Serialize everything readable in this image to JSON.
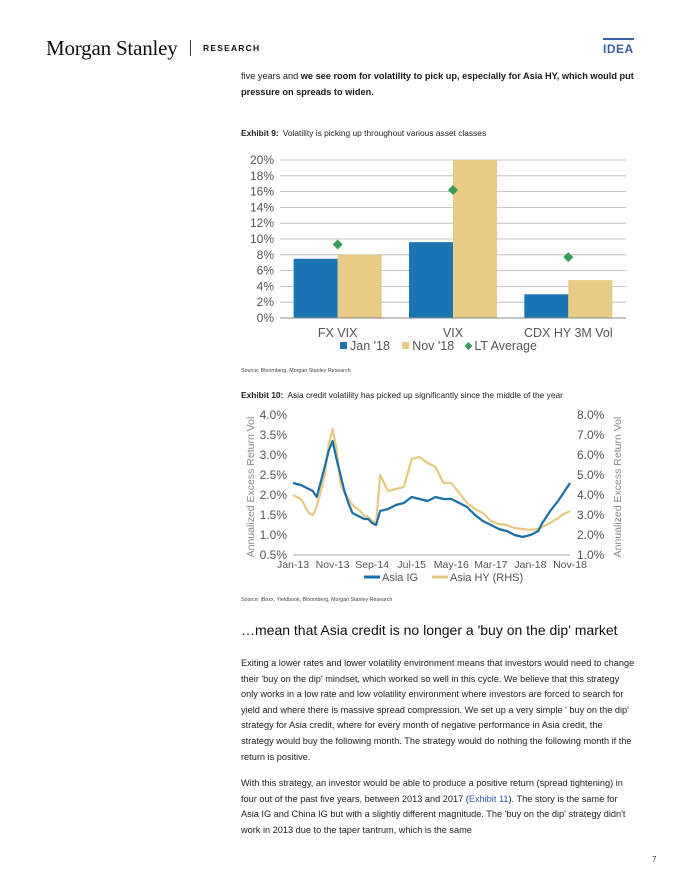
{
  "header": {
    "logo": "Morgan Stanley",
    "section": "RESEARCH",
    "badge": "IDEA"
  },
  "intro": {
    "plain": "five years and ",
    "bold": "we see room for volatility to pick up, especially for Asia HY, which would put pressure on spreads to widen."
  },
  "exhibit9": {
    "number": "Exhibit 9:",
    "title": "Volatility is picking up throughout various asset classes",
    "source": "Source: Bloomberg, Morgan Stanley Research"
  },
  "exhibit10": {
    "number": "Exhibit 10:",
    "title": "Asia credit volatility has picked up significantly since the middle of the year",
    "source": "Source: iBoxx, Yieldbook, Bloomberg, Morgan Stanley Research"
  },
  "chart_data": [
    {
      "type": "bar",
      "categories": [
        "FX VIX",
        "VIX",
        "CDX HY 3M Vol"
      ],
      "series": [
        {
          "name": "Jan '18",
          "values": [
            7.5,
            9.6,
            3.0
          ],
          "color": "#1b75b3"
        },
        {
          "name": "Nov '18",
          "values": [
            8.0,
            20.0,
            4.8
          ],
          "color": "#e8cb84"
        },
        {
          "name": "LT Average",
          "values": [
            9.3,
            16.2,
            7.7
          ],
          "color": "#3a9c5a",
          "style": "diamond"
        }
      ],
      "ylim": [
        0,
        20
      ],
      "yticks": [
        "0%",
        "2%",
        "4%",
        "6%",
        "8%",
        "10%",
        "12%",
        "14%",
        "16%",
        "18%",
        "20%"
      ],
      "grid": true,
      "legend": "bottom"
    },
    {
      "type": "line",
      "x_ticks": [
        "Jan-13",
        "Nov-13",
        "Sep-14",
        "Jul-15",
        "May-16",
        "Mar-17",
        "Jan-18",
        "Nov-18"
      ],
      "ylabel": "Annualized Excess Return Vol",
      "y2label": "Annualized Excess Return Vol",
      "ylim": [
        0.5,
        4.0
      ],
      "y2lim": [
        1.0,
        8.0
      ],
      "yticks": [
        "0.5%",
        "1.0%",
        "1.5%",
        "2.0%",
        "2.5%",
        "3.0%",
        "3.5%",
        "4.0%"
      ],
      "y2ticks": [
        "1.0%",
        "2.0%",
        "3.0%",
        "4.0%",
        "5.0%",
        "6.0%",
        "7.0%",
        "8.0%"
      ],
      "legend": "bottom",
      "series": [
        {
          "name": "Asia IG",
          "axis": "left",
          "color": "#1b6fa6",
          "x": [
            "Jan-13",
            "Mar-13",
            "May-13",
            "Jun-13",
            "Jul-13",
            "Sep-13",
            "Oct-13",
            "Nov-13",
            "Dec-13",
            "Jan-14",
            "Feb-14",
            "Mar-14",
            "Apr-14",
            "Jun-14",
            "Jul-14",
            "Aug-14",
            "Sep-14",
            "Oct-14",
            "Nov-14",
            "Jan-15",
            "Mar-15",
            "May-15",
            "Jul-15",
            "Sep-15",
            "Nov-15",
            "Jan-16",
            "Mar-16",
            "May-16",
            "Jul-16",
            "Sep-16",
            "Nov-16",
            "Jan-17",
            "Mar-17",
            "May-17",
            "Jul-17",
            "Sep-17",
            "Nov-17",
            "Jan-18",
            "Mar-18",
            "Apr-18",
            "Jun-18",
            "Aug-18",
            "Sep-18",
            "Nov-18"
          ],
          "values": [
            2.3,
            2.25,
            2.15,
            2.1,
            1.95,
            2.7,
            3.1,
            3.35,
            2.9,
            2.5,
            2.1,
            1.8,
            1.55,
            1.45,
            1.4,
            1.4,
            1.3,
            1.25,
            1.6,
            1.65,
            1.75,
            1.8,
            1.95,
            1.9,
            1.85,
            1.95,
            1.9,
            1.9,
            1.8,
            1.7,
            1.5,
            1.35,
            1.25,
            1.15,
            1.1,
            1.0,
            0.95,
            1.0,
            1.1,
            1.3,
            1.6,
            1.85,
            2.0,
            2.3
          ]
        },
        {
          "name": "Asia HY (RHS)",
          "axis": "right",
          "color": "#e5c982",
          "x": [
            "Jan-13",
            "Mar-13",
            "May-13",
            "Jun-13",
            "Jul-13",
            "Sep-13",
            "Oct-13",
            "Nov-13",
            "Dec-13",
            "Jan-14",
            "Feb-14",
            "Mar-14",
            "Apr-14",
            "Jun-14",
            "Jul-14",
            "Aug-14",
            "Sep-14",
            "Oct-14",
            "Nov-14",
            "Jan-15",
            "Mar-15",
            "May-15",
            "Jul-15",
            "Sep-15",
            "Nov-15",
            "Jan-16",
            "Mar-16",
            "May-16",
            "Jul-16",
            "Sep-16",
            "Nov-16",
            "Jan-17",
            "Mar-17",
            "May-17",
            "Jul-17",
            "Sep-17",
            "Nov-17",
            "Jan-18",
            "Mar-18",
            "Apr-18",
            "Jun-18",
            "Aug-18",
            "Sep-18",
            "Nov-18"
          ],
          "values": [
            4.0,
            3.8,
            3.1,
            3.0,
            3.4,
            5.0,
            6.5,
            7.3,
            6.3,
            4.6,
            4.1,
            3.8,
            3.5,
            3.2,
            2.95,
            2.9,
            2.7,
            2.6,
            5.0,
            4.2,
            4.3,
            4.4,
            5.8,
            5.9,
            5.6,
            5.4,
            4.6,
            4.6,
            4.1,
            3.6,
            3.3,
            3.1,
            2.7,
            2.55,
            2.5,
            2.35,
            2.3,
            2.25,
            2.3,
            2.4,
            2.6,
            2.85,
            3.0,
            3.2
          ]
        }
      ]
    }
  ],
  "section_heading": "…mean that Asia credit is no longer a 'buy on the dip' market",
  "paragraph1": "Exiting a lower rates and lower volatility environment means that investors would need to change their 'buy on the dip' mindset, which worked so well in this cycle. We believe that this strategy only works in a low rate and low volatility environment where investors are forced to search for yield and where there is massive spread compression. We set up a very simple ' buy on the dip' strategy for Asia credit, where for every month of negative performance in Asia credit, the strategy would buy the following month. The strategy would do nothing the following month if the return is positive.",
  "paragraph2": {
    "before": "With this strategy, an investor would be able to produce a positive return (spread tightening) in four out of the past five years, between 2013 and 2017 (",
    "link": "Exhibit 11",
    "after": "). The story is the same for Asia IG and China IG but with a slightly different magnitude. The 'buy on the dip' strategy didn't work in 2013 due to the taper tantrum, which is the same"
  },
  "page_number": "7"
}
